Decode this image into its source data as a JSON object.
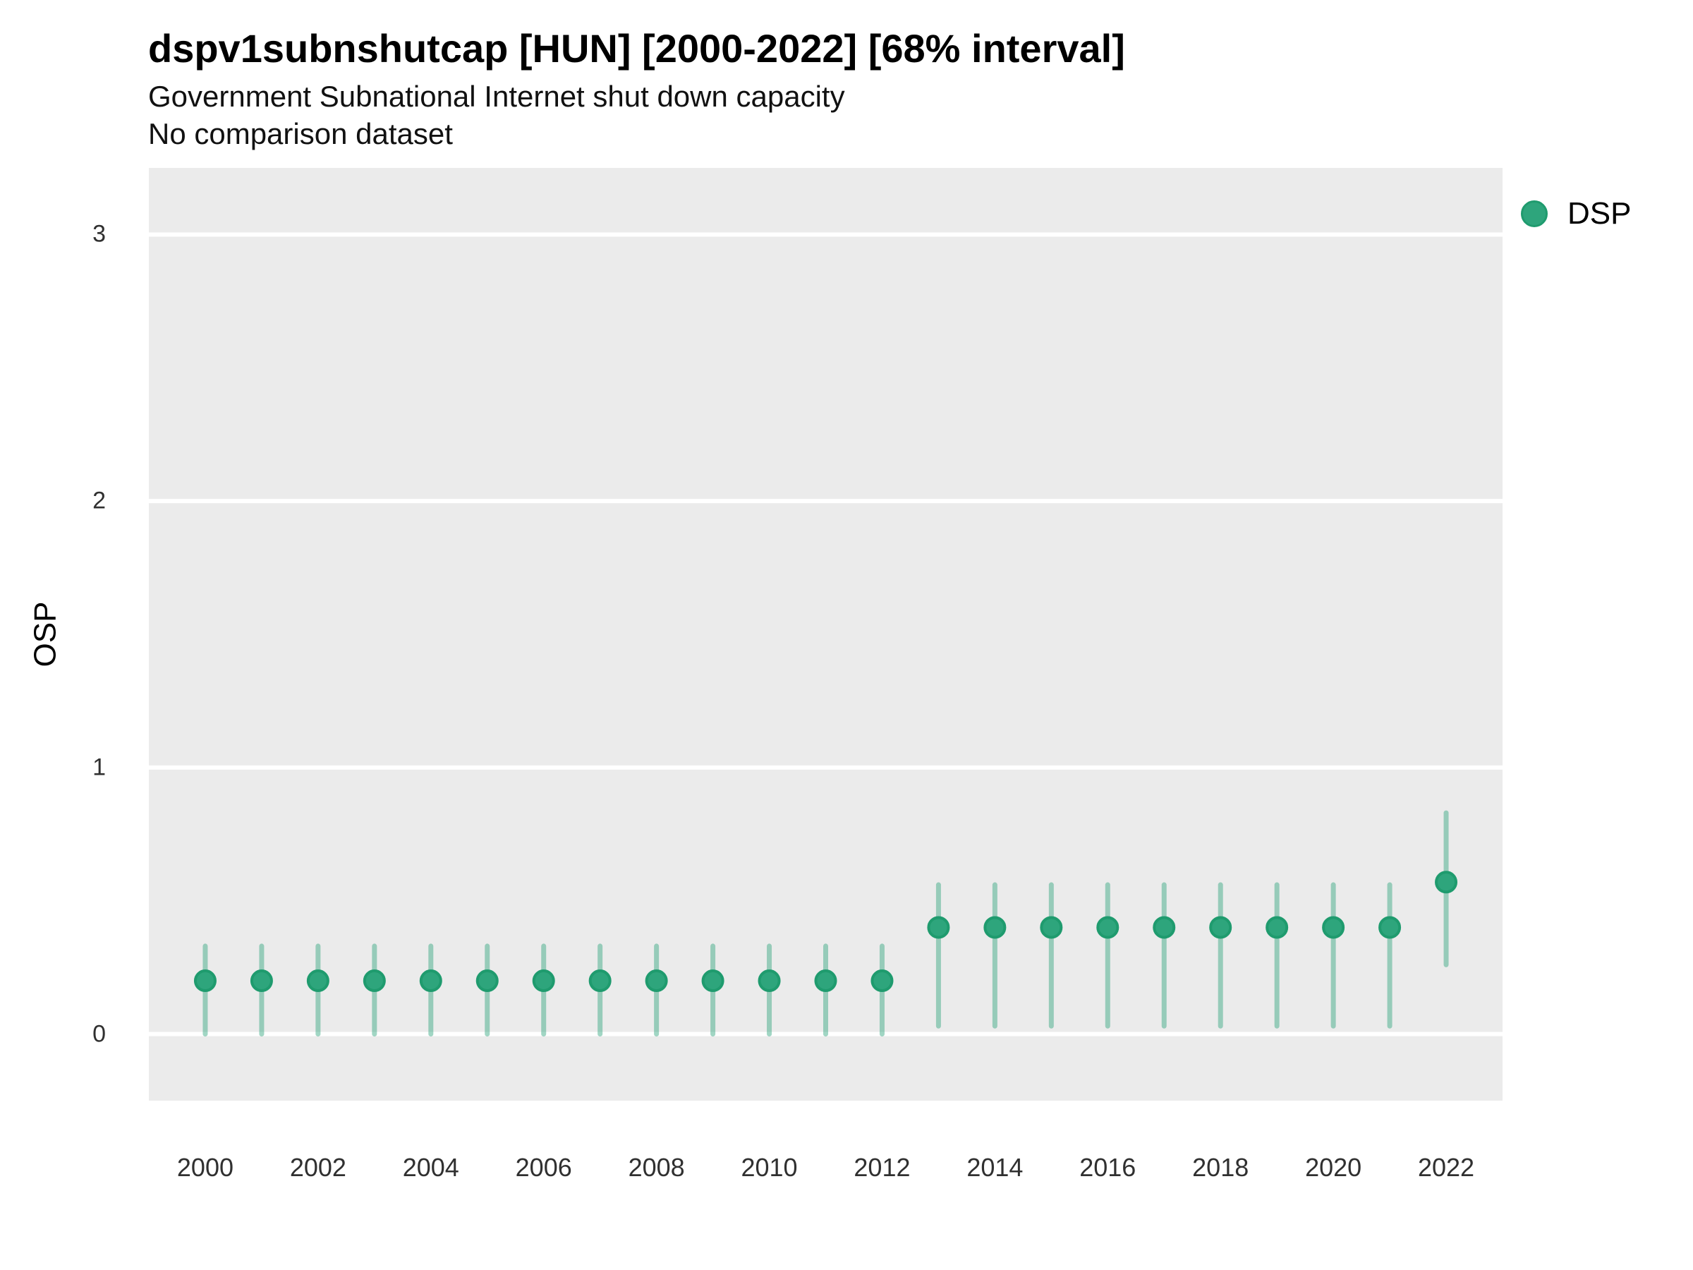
{
  "header": {
    "title": "dspv1subnshutcap [HUN] [2000-2022] [68% interval]",
    "subtitle": "Government Subnational Internet shut down capacity",
    "note": "No comparison dataset"
  },
  "colors": {
    "panel_background": "#EBEBEB",
    "gridline": "#FFFFFF",
    "point_fill": "#2EA57C",
    "point_stroke": "#1F9B6E",
    "interval_bar": "rgba(46,165,124,0.45)",
    "axis_text": "#303030"
  },
  "legend": {
    "entries": [
      {
        "label": "DSP",
        "color": "#2EA57C"
      }
    ],
    "position": "right"
  },
  "chart_data": {
    "type": "scatter",
    "subtype": "pointrange-interval",
    "title": "dspv1subnshutcap [HUN] [2000-2022] [68% interval]",
    "subtitle": "Government Subnational Internet shut down capacity",
    "note": "No comparison dataset",
    "interval_level": "68%",
    "xlabel": "",
    "ylabel": "OSP",
    "xlim": [
      1999,
      2023
    ],
    "ylim": [
      -0.25,
      3.25
    ],
    "x_ticks": [
      2000,
      2002,
      2004,
      2006,
      2008,
      2010,
      2012,
      2014,
      2016,
      2018,
      2020,
      2022
    ],
    "y_ticks": [
      0,
      1,
      2,
      3
    ],
    "grid": "horizontal-major-only",
    "legend_position": "right",
    "series": [
      {
        "name": "DSP",
        "points": [
          {
            "x": 2000,
            "y": 0.2,
            "lo": 0.0,
            "hi": 0.33
          },
          {
            "x": 2001,
            "y": 0.2,
            "lo": 0.0,
            "hi": 0.33
          },
          {
            "x": 2002,
            "y": 0.2,
            "lo": 0.0,
            "hi": 0.33
          },
          {
            "x": 2003,
            "y": 0.2,
            "lo": 0.0,
            "hi": 0.33
          },
          {
            "x": 2004,
            "y": 0.2,
            "lo": 0.0,
            "hi": 0.33
          },
          {
            "x": 2005,
            "y": 0.2,
            "lo": 0.0,
            "hi": 0.33
          },
          {
            "x": 2006,
            "y": 0.2,
            "lo": 0.0,
            "hi": 0.33
          },
          {
            "x": 2007,
            "y": 0.2,
            "lo": 0.0,
            "hi": 0.33
          },
          {
            "x": 2008,
            "y": 0.2,
            "lo": 0.0,
            "hi": 0.33
          },
          {
            "x": 2009,
            "y": 0.2,
            "lo": 0.0,
            "hi": 0.33
          },
          {
            "x": 2010,
            "y": 0.2,
            "lo": 0.0,
            "hi": 0.33
          },
          {
            "x": 2011,
            "y": 0.2,
            "lo": 0.0,
            "hi": 0.33
          },
          {
            "x": 2012,
            "y": 0.2,
            "lo": 0.0,
            "hi": 0.33
          },
          {
            "x": 2013,
            "y": 0.4,
            "lo": 0.03,
            "hi": 0.56
          },
          {
            "x": 2014,
            "y": 0.4,
            "lo": 0.03,
            "hi": 0.56
          },
          {
            "x": 2015,
            "y": 0.4,
            "lo": 0.03,
            "hi": 0.56
          },
          {
            "x": 2016,
            "y": 0.4,
            "lo": 0.03,
            "hi": 0.56
          },
          {
            "x": 2017,
            "y": 0.4,
            "lo": 0.03,
            "hi": 0.56
          },
          {
            "x": 2018,
            "y": 0.4,
            "lo": 0.03,
            "hi": 0.56
          },
          {
            "x": 2019,
            "y": 0.4,
            "lo": 0.03,
            "hi": 0.56
          },
          {
            "x": 2020,
            "y": 0.4,
            "lo": 0.03,
            "hi": 0.56
          },
          {
            "x": 2021,
            "y": 0.4,
            "lo": 0.03,
            "hi": 0.56
          },
          {
            "x": 2022,
            "y": 0.57,
            "lo": 0.26,
            "hi": 0.83
          }
        ]
      }
    ]
  }
}
